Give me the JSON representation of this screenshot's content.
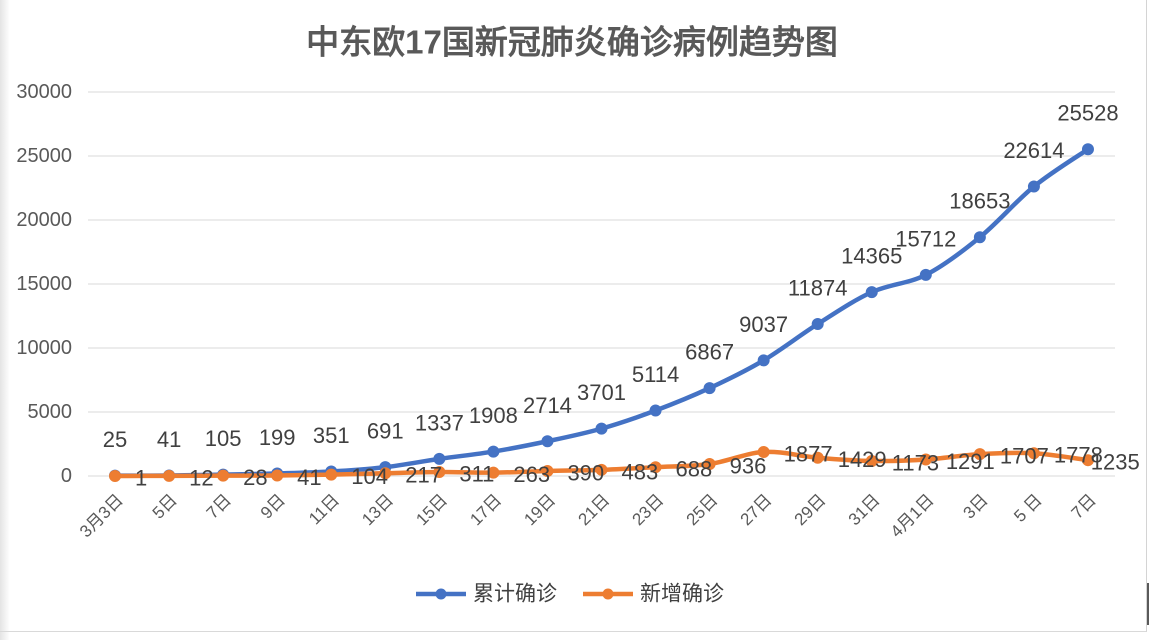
{
  "chart_data": {
    "type": "line",
    "title": "中东欧17国新冠肺炎确诊病例趋势图",
    "categories": [
      "3月3日",
      "5日",
      "7日",
      "9日",
      "11日",
      "13日",
      "15日",
      "17日",
      "19日",
      "21日",
      "23日",
      "25日",
      "27日",
      "29日",
      "31日",
      "4月1日",
      "3日",
      "5 日",
      "7日"
    ],
    "series": [
      {
        "name": "累计确诊",
        "color": "#4472C4",
        "values": [
          25,
          41,
          105,
          199,
          351,
          691,
          1337,
          1908,
          2714,
          3701,
          5114,
          6867,
          9037,
          11874,
          14365,
          15712,
          18653,
          22614,
          25528
        ]
      },
      {
        "name": "新增确诊",
        "color": "#ED7D31",
        "values": [
          1,
          12,
          28,
          41,
          104,
          217,
          311,
          263,
          390,
          483,
          688,
          936,
          1877,
          1429,
          1173,
          1291,
          1707,
          1778,
          1235
        ]
      }
    ],
    "ylim": [
      0,
      30000
    ],
    "yticks": [
      0,
      5000,
      10000,
      15000,
      20000,
      25000,
      30000
    ],
    "grid": true,
    "legend": "bottom",
    "data_labels": true,
    "smooth": true
  }
}
